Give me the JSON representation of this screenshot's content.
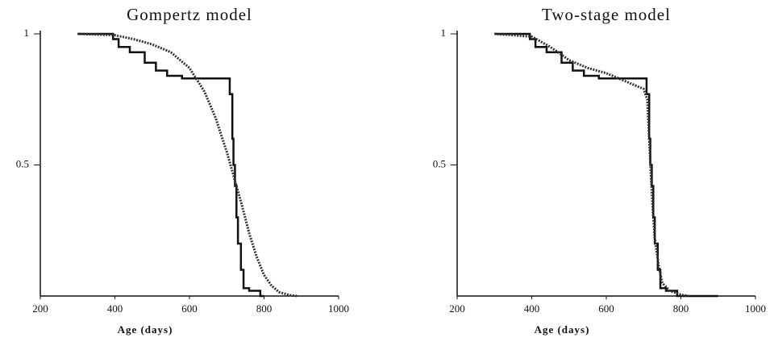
{
  "chart_data": [
    {
      "type": "line",
      "title": "Gompertz model",
      "x_label": "Age (days)",
      "xlim": [
        200,
        1000
      ],
      "xticks": [
        200,
        400,
        600,
        800,
        1000
      ],
      "ylim": [
        0,
        1
      ],
      "yticks": [
        0.5,
        1
      ],
      "series": [
        {
          "color": "#111111",
          "step": true,
          "dashed": false,
          "x": [
            300,
            395,
            410,
            440,
            480,
            510,
            540,
            580,
            708,
            715,
            718,
            722,
            726,
            730,
            738,
            745,
            760,
            790,
            800
          ],
          "values": [
            1,
            0.98,
            0.95,
            0.93,
            0.89,
            0.86,
            0.84,
            0.83,
            0.77,
            0.6,
            0.5,
            0.42,
            0.3,
            0.2,
            0.1,
            0.03,
            0.02,
            0,
            0
          ]
        },
        {
          "color": "#333333",
          "step": false,
          "dashed": true,
          "x": [
            300,
            400,
            450,
            500,
            550,
            600,
            640,
            670,
            700,
            720,
            740,
            760,
            780,
            800,
            820,
            840,
            870,
            890
          ],
          "values": [
            1,
            0.995,
            0.98,
            0.96,
            0.93,
            0.87,
            0.78,
            0.68,
            0.55,
            0.45,
            0.35,
            0.24,
            0.15,
            0.08,
            0.04,
            0.015,
            0.003,
            0
          ]
        }
      ]
    },
    {
      "type": "line",
      "title": "Two-stage model",
      "x_label": "Age (days)",
      "xlim": [
        200,
        1000
      ],
      "xticks": [
        200,
        400,
        600,
        800,
        1000
      ],
      "ylim": [
        0,
        1
      ],
      "yticks": [
        0.5,
        1
      ],
      "series": [
        {
          "color": "#111111",
          "step": true,
          "dashed": false,
          "x": [
            300,
            395,
            410,
            440,
            480,
            510,
            540,
            580,
            708,
            715,
            718,
            722,
            726,
            730,
            738,
            745,
            760,
            790,
            900
          ],
          "values": [
            1,
            0.98,
            0.95,
            0.93,
            0.89,
            0.86,
            0.84,
            0.83,
            0.77,
            0.6,
            0.5,
            0.42,
            0.3,
            0.2,
            0.1,
            0.03,
            0.02,
            0,
            0
          ]
        },
        {
          "color": "#333333",
          "step": false,
          "dashed": true,
          "x": [
            300,
            400,
            450,
            500,
            550,
            600,
            650,
            700,
            710,
            715,
            720,
            725,
            730,
            740,
            750,
            770,
            800,
            820
          ],
          "values": [
            1,
            0.99,
            0.95,
            0.9,
            0.87,
            0.85,
            0.82,
            0.79,
            0.75,
            0.6,
            0.45,
            0.32,
            0.22,
            0.12,
            0.05,
            0.02,
            0.005,
            0
          ]
        }
      ]
    }
  ]
}
